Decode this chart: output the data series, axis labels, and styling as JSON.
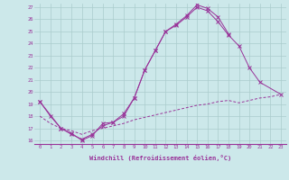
{
  "xlabel": "Windchill (Refroidissement éolien,°C)",
  "background_color": "#cce8ea",
  "grid_color": "#aacccc",
  "line_color": "#993399",
  "xlim": [
    -0.5,
    23.5
  ],
  "ylim": [
    15.7,
    27.3
  ],
  "yticks": [
    16,
    17,
    18,
    19,
    20,
    21,
    22,
    23,
    24,
    25,
    26,
    27
  ],
  "xticks": [
    0,
    1,
    2,
    3,
    4,
    5,
    6,
    7,
    8,
    9,
    10,
    11,
    12,
    13,
    14,
    15,
    16,
    17,
    18,
    19,
    20,
    21,
    22,
    23
  ],
  "line1_x": [
    0,
    1,
    2,
    3,
    4,
    5,
    6,
    7,
    8,
    9,
    10,
    11,
    12,
    13,
    14,
    15,
    16,
    17,
    18
  ],
  "line1_y": [
    19.2,
    18.0,
    17.0,
    16.6,
    16.0,
    16.4,
    17.4,
    17.5,
    18.0,
    19.5,
    21.8,
    23.4,
    25.0,
    25.6,
    26.3,
    27.2,
    26.9,
    26.2,
    24.8
  ],
  "line2_x": [
    0,
    2,
    3,
    4,
    5,
    6,
    7,
    8,
    9,
    10,
    11,
    12,
    13,
    14,
    15,
    16,
    17,
    18,
    19,
    20,
    21,
    23
  ],
  "line2_y": [
    19.2,
    17.0,
    16.5,
    16.1,
    16.5,
    17.2,
    17.5,
    18.2,
    19.5,
    21.8,
    23.4,
    25.0,
    25.5,
    26.2,
    27.0,
    26.7,
    25.8,
    24.7,
    23.8,
    22.0,
    20.8,
    19.8
  ],
  "line3_x": [
    0,
    1,
    2,
    3,
    4,
    5,
    6,
    7,
    8,
    9,
    10,
    11,
    12,
    13,
    14,
    15,
    16,
    17,
    18,
    19,
    20,
    21,
    22,
    23
  ],
  "line3_y": [
    18.0,
    17.4,
    17.0,
    16.8,
    16.5,
    16.8,
    17.0,
    17.2,
    17.4,
    17.7,
    17.9,
    18.1,
    18.3,
    18.5,
    18.7,
    18.9,
    19.0,
    19.2,
    19.3,
    19.1,
    19.3,
    19.5,
    19.6,
    19.8
  ]
}
